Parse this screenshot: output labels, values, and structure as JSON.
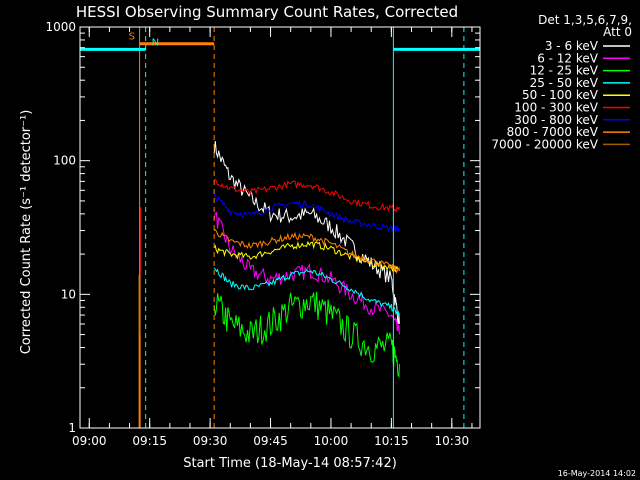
{
  "chart_data": {
    "type": "line",
    "title": "HESSI Observing Summary Count Rates, Corrected",
    "xlabel": "Start Time (18-May-14 08:57:42)",
    "ylabel": "Corrected Count Rate (s⁻¹ detector⁻¹)",
    "y_scale": "log",
    "ylim": [
      1,
      1000
    ],
    "xlim": [
      "08:57:42",
      "10:37:00"
    ],
    "x_ticks": [
      "09:00",
      "09:15",
      "09:30",
      "09:45",
      "10:00",
      "10:15",
      "10:30"
    ],
    "y_ticks": [
      "1",
      "10",
      "100",
      "1000"
    ],
    "footer": "16-May-2014 14:02",
    "legend": {
      "header": [
        "Det 1,3,5,6,7,9,",
        "Att 0"
      ],
      "placement": "top-right outside plot"
    },
    "series": [
      {
        "name": "3 - 6 keV",
        "color": "#ffffff",
        "x": [
          "09:31",
          "09:35",
          "09:40",
          "09:45",
          "09:50",
          "09:55",
          "10:00",
          "10:05",
          "10:10",
          "10:15",
          "10:17"
        ],
        "values": [
          130,
          75,
          52,
          40,
          38,
          40,
          32,
          23,
          17,
          13,
          6
        ]
      },
      {
        "name": "6 - 12 keV",
        "color": "#ff00ff",
        "x": [
          "09:31",
          "09:35",
          "09:40",
          "09:45",
          "09:50",
          "09:55",
          "10:00",
          "10:05",
          "10:10",
          "10:15",
          "10:17"
        ],
        "values": [
          40,
          22,
          15,
          13,
          14,
          15,
          13,
          10,
          8,
          7,
          5
        ]
      },
      {
        "name": "12 - 25 keV",
        "color": "#00ff00",
        "x": [
          "09:31",
          "09:35",
          "09:40",
          "09:45",
          "09:50",
          "09:55",
          "10:00",
          "10:05",
          "10:10",
          "10:15",
          "10:17"
        ],
        "values": [
          9,
          6,
          5,
          6,
          8,
          9,
          7,
          5,
          4,
          4,
          3
        ]
      },
      {
        "name": "25 - 50 keV",
        "color": "#00ffff",
        "x": [
          "09:31",
          "09:35",
          "09:40",
          "09:45",
          "09:50",
          "09:55",
          "10:00",
          "10:05",
          "10:10",
          "10:15",
          "10:17"
        ],
        "values": [
          16,
          12,
          11,
          12,
          14,
          15,
          13,
          11,
          9,
          8,
          7
        ]
      },
      {
        "name": "50 - 100 keV",
        "color": "#ffff00",
        "x": [
          "09:31",
          "09:35",
          "09:40",
          "09:45",
          "09:50",
          "09:55",
          "10:00",
          "10:05",
          "10:10",
          "10:15",
          "10:17"
        ],
        "values": [
          22,
          20,
          19,
          21,
          23,
          24,
          22,
          19,
          17,
          16,
          15
        ]
      },
      {
        "name": "100 - 300 keV",
        "color": "#ff0000",
        "x": [
          "09:31",
          "09:35",
          "09:40",
          "09:45",
          "09:50",
          "09:55",
          "10:00",
          "10:05",
          "10:10",
          "10:15",
          "10:17"
        ],
        "values": [
          72,
          62,
          58,
          62,
          67,
          66,
          58,
          50,
          46,
          44,
          43
        ]
      },
      {
        "name": "300 - 800 keV",
        "color": "#0000ff",
        "x": [
          "09:31",
          "09:35",
          "09:40",
          "09:45",
          "09:50",
          "09:55",
          "10:00",
          "10:05",
          "10:10",
          "10:15",
          "10:17"
        ],
        "values": [
          55,
          42,
          39,
          44,
          48,
          47,
          40,
          35,
          33,
          31,
          31
        ]
      },
      {
        "name": "800 - 7000 keV",
        "color": "#ff8000",
        "x": [
          "09:31",
          "09:35",
          "09:40",
          "09:45",
          "09:50",
          "09:55",
          "10:00",
          "10:05",
          "10:10",
          "10:15",
          "10:17"
        ],
        "values": [
          30,
          25,
          23,
          25,
          27,
          27,
          24,
          20,
          18,
          16,
          15
        ]
      },
      {
        "name": "7000 - 20000 keV",
        "color": "#a06000",
        "x": [],
        "values": []
      }
    ],
    "annotations": [
      {
        "label": "S",
        "color": "#ff8000",
        "x_start": "09:12:30",
        "x_end": "09:31:00",
        "y": 750
      },
      {
        "label": "N",
        "color": "#00ffff",
        "x_start": "08:57:42",
        "x_end": "09:14:00",
        "y": 680
      },
      {
        "label": "",
        "color": "#00ffff",
        "x_start": "10:15:30",
        "x_end": "10:37:00",
        "y": 680
      }
    ],
    "vertical_lines": [
      {
        "color": "#00ffff",
        "x": "09:14:00",
        "style": "dashed"
      },
      {
        "color": "#ff8000",
        "x": "09:31:00",
        "style": "dashed"
      },
      {
        "color": "#00ffff",
        "x": "10:15:30",
        "style": "solid"
      },
      {
        "color": "#00ffff",
        "x": "10:33:00",
        "style": "dashed"
      },
      {
        "color": "#00ffff",
        "x": "08:57:42",
        "style": "solid"
      },
      {
        "color": "#ff8000",
        "x": "09:12:30",
        "style": "solid"
      }
    ]
  }
}
